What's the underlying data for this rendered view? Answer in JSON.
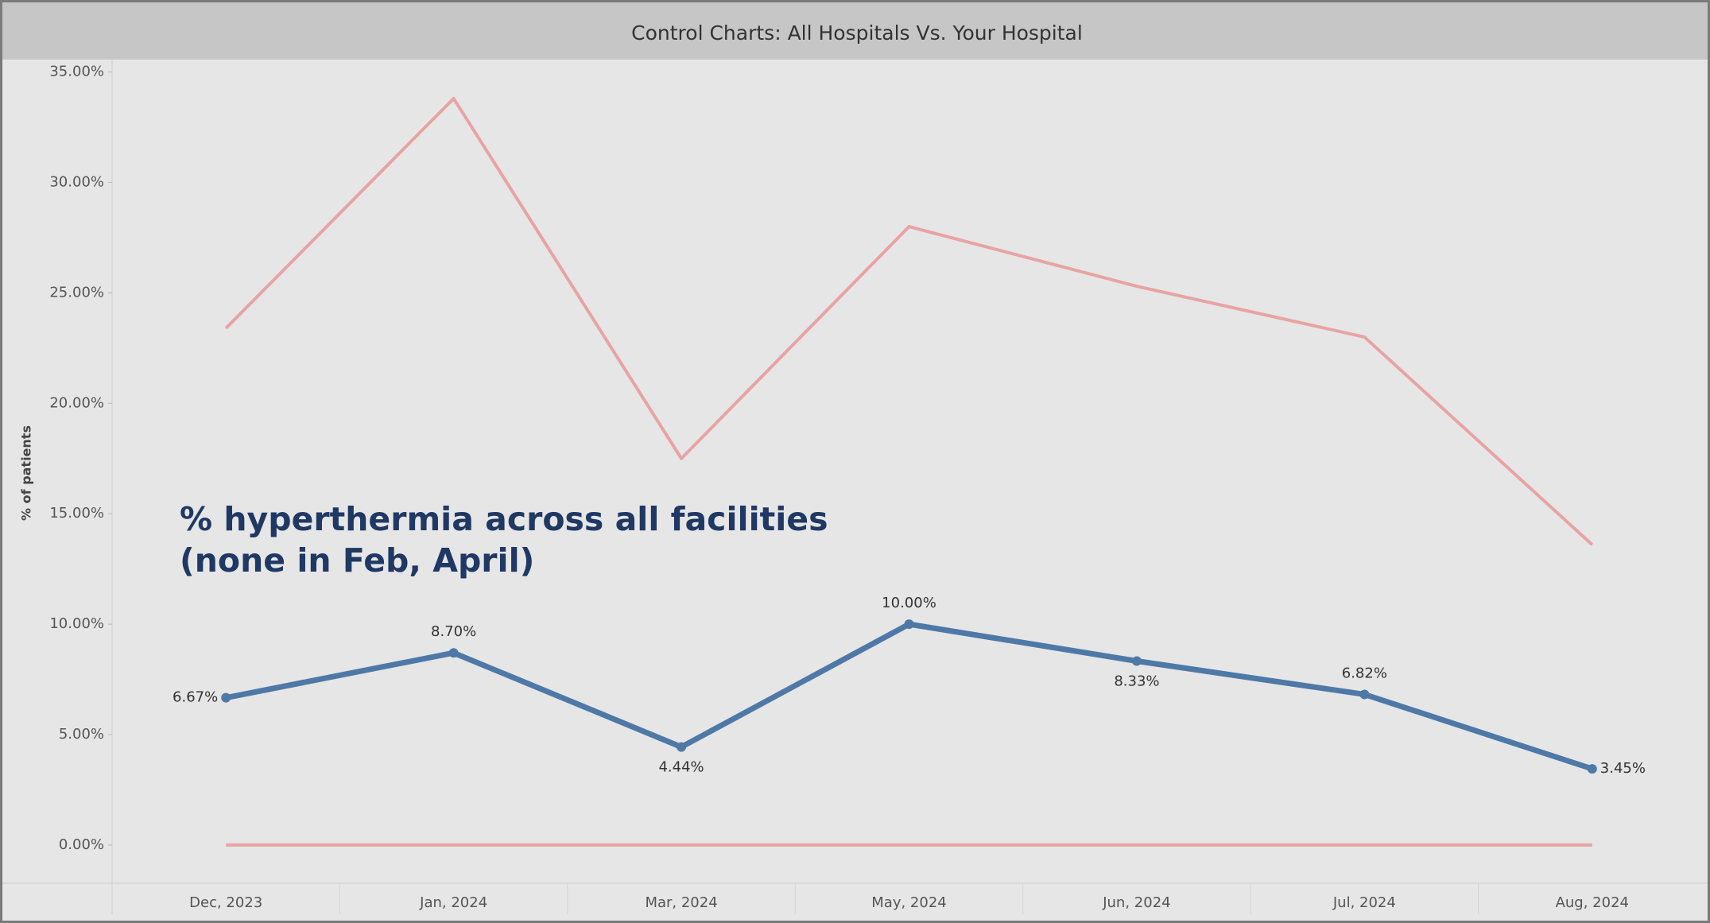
{
  "chart_data": {
    "type": "line",
    "title": "Control Charts: All Hospitals Vs. Your Hospital",
    "y_label": "% of patients",
    "annotation": [
      "% hyperthermia across all facilities",
      "(none in Feb, April)"
    ],
    "categories": [
      "Dec, 2023",
      "Jan, 2024",
      "Mar, 2024",
      "May, 2024",
      "Jun, 2024",
      "Jul, 2024",
      "Aug, 2024"
    ],
    "series": [
      {
        "color": "#e8a3a3",
        "values": [
          23.4,
          33.8,
          17.5,
          28.0,
          25.3,
          23.0,
          13.6
        ]
      },
      {
        "color": "#e8a3a3",
        "values": [
          0,
          0,
          0,
          0,
          0,
          0,
          0
        ]
      },
      {
        "color": "#4e79a7",
        "values": [
          6.67,
          8.7,
          4.44,
          10.0,
          8.33,
          6.82,
          3.45
        ],
        "value_labels": [
          "6.67%",
          "8.70%",
          "4.44%",
          "10.00%",
          "8.33%",
          "6.82%",
          "3.45%"
        ],
        "markers": true
      }
    ],
    "ylim": [
      -1.73,
      35.56
    ],
    "yticks": [
      {
        "value": 0,
        "label": "0.00%"
      },
      {
        "value": 5,
        "label": "5.00%"
      },
      {
        "value": 10,
        "label": "10.00%"
      },
      {
        "value": 15,
        "label": "15.00%"
      },
      {
        "value": 20,
        "label": "20.00%"
      },
      {
        "value": 25,
        "label": "25.00%"
      },
      {
        "value": 30,
        "label": "30.00%"
      },
      {
        "value": 35,
        "label": "35.00%"
      }
    ],
    "grid": false
  }
}
